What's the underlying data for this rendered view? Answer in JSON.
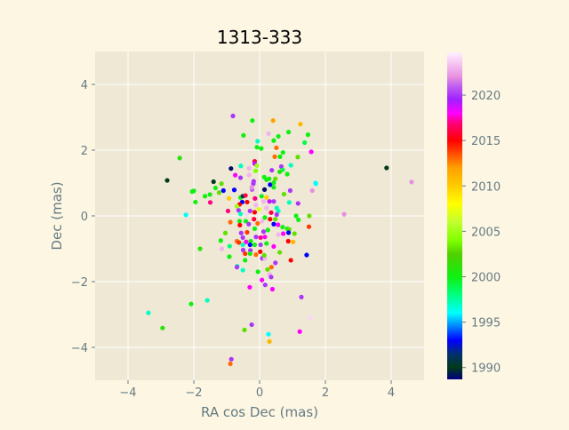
{
  "chart_data": {
    "type": "scatter",
    "title": "1313-333",
    "xlabel": "RA cos Dec (mas)",
    "ylabel": "Dec (mas)",
    "xlim": [
      -5,
      5
    ],
    "ylim": [
      -5,
      5
    ],
    "xticks": [
      -4,
      -2,
      0,
      2,
      4
    ],
    "yticks": [
      -4,
      -2,
      0,
      2,
      4
    ],
    "grid": true,
    "colorbar": {
      "label": "",
      "range": [
        1988.7,
        2024.7
      ],
      "ticks": [
        1990,
        1995,
        2000,
        2005,
        2010,
        2015,
        2020
      ],
      "colormap": "gist_ncar"
    },
    "colors": {
      "page_bg": "#fdf6e3",
      "axes_bg": "#eee8d5",
      "grid": "#ffffff",
      "text": "#657b83"
    },
    "points": [
      [
        -2.81,
        1.08,
        1990
      ],
      [
        -2.43,
        1.76,
        2001
      ],
      [
        3.86,
        1.46,
        1990
      ],
      [
        4.62,
        1.03,
        2022
      ],
      [
        2.57,
        0.05,
        2022
      ],
      [
        -3.38,
        -2.95,
        1997
      ],
      [
        -2.95,
        -3.41,
        2001
      ],
      [
        -2.08,
        -2.68,
        2000
      ],
      [
        -1.59,
        -2.57,
        1997
      ],
      [
        -0.86,
        -4.36,
        2020
      ],
      [
        -0.89,
        -4.5,
        2013
      ],
      [
        0.3,
        -3.82,
        2011
      ],
      [
        0.27,
        -3.6,
        1996
      ],
      [
        -0.46,
        -3.47,
        2003
      ],
      [
        -0.24,
        -3.31,
        2020
      ],
      [
        1.22,
        -3.52,
        2018
      ],
      [
        1.54,
        -3.09,
        2024
      ],
      [
        1.43,
        -1.19,
        1993
      ],
      [
        1.27,
        -2.47,
        2020
      ],
      [
        -0.81,
        3.04,
        2020
      ],
      [
        -0.22,
        2.9,
        2000
      ],
      [
        0.41,
        2.9,
        2012
      ],
      [
        1.24,
        2.79,
        2011
      ],
      [
        1.57,
        1.95,
        2018
      ],
      [
        1.7,
        1.0,
        1996
      ],
      [
        -2.24,
        0.03,
        1996
      ],
      [
        -2.0,
        0.76,
        2000
      ],
      [
        -1.81,
        -1.0,
        2001
      ],
      [
        -1.51,
        0.65,
        2000
      ],
      [
        -0.49,
        2.45,
        2000
      ],
      [
        0.27,
        2.5,
        2023
      ],
      [
        0.88,
        2.55,
        2000
      ],
      [
        1.47,
        2.47,
        2000
      ],
      [
        -0.06,
        2.27,
        1997
      ],
      [
        0.43,
        2.29,
        2000
      ],
      [
        0.57,
        2.42,
        2000
      ],
      [
        -0.08,
        2.09,
        2000
      ],
      [
        0.05,
        2.05,
        2000
      ],
      [
        1.37,
        2.23,
        1999
      ],
      [
        0.51,
        2.07,
        2013
      ],
      [
        0.71,
        1.93,
        2000
      ],
      [
        0.46,
        1.8,
        2013
      ],
      [
        0.62,
        1.8,
        2000
      ],
      [
        1.16,
        1.79,
        2003
      ],
      [
        -0.15,
        1.66,
        2016
      ],
      [
        -0.15,
        1.59,
        2019
      ],
      [
        -0.08,
        1.53,
        2005
      ],
      [
        -0.87,
        1.44,
        1989
      ],
      [
        -0.57,
        1.52,
        1997
      ],
      [
        -0.32,
        1.45,
        2023
      ],
      [
        -0.12,
        1.37,
        2004
      ],
      [
        0.37,
        1.39,
        2020
      ],
      [
        0.66,
        1.5,
        2020
      ],
      [
        0.7,
        1.4,
        1999
      ],
      [
        0.61,
        1.34,
        2001
      ],
      [
        0.95,
        1.54,
        1997
      ],
      [
        0.84,
        1.27,
        2000
      ],
      [
        -0.74,
        1.24,
        2018
      ],
      [
        -0.58,
        1.16,
        2020
      ],
      [
        -0.32,
        1.24,
        2023
      ],
      [
        0.14,
        1.18,
        2000
      ],
      [
        0.21,
        1.1,
        2000
      ],
      [
        0.29,
        1.13,
        2000
      ],
      [
        0.48,
        1.13,
        2003
      ],
      [
        -0.18,
        1.05,
        2020
      ],
      [
        -0.19,
        0.98,
        2020
      ],
      [
        -1.4,
        1.04,
        1990
      ],
      [
        -1.16,
        0.98,
        2003
      ],
      [
        0.32,
        0.95,
        1993
      ],
      [
        0.15,
        0.8,
        1989
      ],
      [
        0.43,
        1.01,
        2000
      ],
      [
        0.43,
        0.87,
        2000
      ],
      [
        -1.34,
        0.85,
        2000
      ],
      [
        -1.23,
        0.71,
        2003
      ],
      [
        -1.1,
        0.77,
        1993
      ],
      [
        -0.77,
        0.79,
        1993
      ],
      [
        -0.23,
        0.8,
        2021
      ],
      [
        -0.24,
        0.87,
        2022
      ],
      [
        -2.05,
        0.74,
        2000
      ],
      [
        -1.66,
        0.6,
        2000
      ],
      [
        -1.95,
        0.42,
        2000
      ],
      [
        -1.5,
        0.41,
        2017
      ],
      [
        -0.93,
        0.53,
        2010
      ],
      [
        0.74,
        0.66,
        2003
      ],
      [
        0.93,
        0.77,
        2020
      ],
      [
        1.71,
        0.98,
        1996
      ],
      [
        1.6,
        0.77,
        2022
      ],
      [
        1.17,
        0.38,
        2020
      ],
      [
        0.9,
        0.41,
        1997
      ],
      [
        -0.58,
        0.56,
        2000
      ],
      [
        -0.53,
        0.42,
        1993
      ],
      [
        -0.51,
        0.6,
        1991
      ],
      [
        -0.43,
        0.62,
        2016
      ],
      [
        -0.61,
        0.35,
        2015
      ],
      [
        -0.38,
        0.42,
        2015
      ],
      [
        -0.14,
        0.53,
        2017
      ],
      [
        -0.11,
        0.33,
        2023
      ],
      [
        0.06,
        0.6,
        2000
      ],
      [
        0.21,
        0.56,
        2010
      ],
      [
        0.12,
        0.44,
        2023
      ],
      [
        0.3,
        0.44,
        2019
      ],
      [
        0.43,
        0.44,
        2020
      ],
      [
        0.52,
        0.24,
        1997
      ],
      [
        0.57,
        0.15,
        1997
      ],
      [
        -0.69,
        0.29,
        2005
      ],
      [
        -0.96,
        0.15,
        2017
      ],
      [
        -0.64,
        0.17,
        2020
      ],
      [
        -0.58,
        0.06,
        1997
      ],
      [
        -0.38,
        0.05,
        2024
      ],
      [
        -0.29,
        0.15,
        2020
      ],
      [
        -0.15,
        0.11,
        2015
      ],
      [
        -0.02,
        0.2,
        2007
      ],
      [
        0.21,
        0.24,
        2023
      ],
      [
        0.35,
        0.1,
        2016
      ],
      [
        0.52,
        0.04,
        2020
      ],
      [
        1.51,
        0.0,
        2003
      ],
      [
        1.11,
        0.0,
        2000
      ],
      [
        1.18,
        -0.12,
        2000
      ],
      [
        1.5,
        -0.33,
        2014
      ],
      [
        -0.89,
        -0.19,
        2013
      ],
      [
        -0.61,
        -0.16,
        2000
      ],
      [
        -0.6,
        -0.28,
        2015
      ],
      [
        -0.42,
        -0.16,
        2000
      ],
      [
        -0.33,
        -0.25,
        2020
      ],
      [
        -0.17,
        -0.1,
        2016
      ],
      [
        -0.06,
        -0.23,
        2013
      ],
      [
        0.07,
        -0.16,
        2023
      ],
      [
        0.16,
        -0.05,
        2000
      ],
      [
        0.32,
        -0.1,
        2015
      ],
      [
        0.48,
        -0.1,
        2003
      ],
      [
        0.43,
        -0.25,
        1993
      ],
      [
        0.56,
        -0.27,
        2018
      ],
      [
        0.7,
        -0.34,
        2000
      ],
      [
        0.84,
        -0.39,
        2000
      ],
      [
        0.9,
        -0.41,
        2003
      ],
      [
        0.88,
        -0.51,
        1993
      ],
      [
        0.72,
        -0.54,
        2018
      ],
      [
        0.57,
        -0.57,
        2023
      ],
      [
        1.06,
        -0.54,
        2003
      ],
      [
        -1.04,
        -0.52,
        2003
      ],
      [
        -0.56,
        -0.52,
        2020
      ],
      [
        -0.38,
        -0.5,
        2014
      ],
      [
        -0.15,
        -0.39,
        2000
      ],
      [
        0.12,
        -0.48,
        2020
      ],
      [
        0.25,
        -0.43,
        2000
      ],
      [
        0.16,
        -0.64,
        2018
      ],
      [
        0.03,
        -0.66,
        2017
      ],
      [
        -0.11,
        -0.64,
        2020
      ],
      [
        -1.18,
        -0.75,
        2000
      ],
      [
        -0.69,
        -0.77,
        2013
      ],
      [
        -0.63,
        -0.81,
        2014
      ],
      [
        -0.51,
        -0.66,
        2020
      ],
      [
        -0.41,
        -0.79,
        2018
      ],
      [
        -0.27,
        -0.77,
        2000
      ],
      [
        -0.15,
        -0.88,
        2000
      ],
      [
        -0.29,
        -0.88,
        1993
      ],
      [
        -0.51,
        -0.88,
        1997
      ],
      [
        0.03,
        -0.88,
        2020
      ],
      [
        0.21,
        -0.84,
        2000
      ],
      [
        0.43,
        -0.93,
        2018
      ],
      [
        0.87,
        -0.77,
        2015
      ],
      [
        1.02,
        -0.79,
        2011
      ],
      [
        -1.15,
        -1.0,
        2023
      ],
      [
        -0.91,
        -0.92,
        1998
      ],
      [
        -0.92,
        -1.24,
        2000
      ],
      [
        -0.5,
        -1.04,
        2020
      ],
      [
        -0.28,
        -1.05,
        2020
      ],
      [
        -0.44,
        -1.15,
        2014
      ],
      [
        -0.29,
        -1.15,
        2000
      ],
      [
        -0.11,
        -1.18,
        2013
      ],
      [
        0.02,
        -1.09,
        2015
      ],
      [
        0.08,
        -1.29,
        2020
      ],
      [
        0.16,
        -1.29,
        2023
      ],
      [
        0.14,
        -1.2,
        2003
      ],
      [
        0.61,
        -1.11,
        2003
      ],
      [
        0.95,
        -1.35,
        2015
      ],
      [
        -0.44,
        -1.35,
        2000
      ],
      [
        -0.68,
        -1.53,
        1997
      ],
      [
        -0.69,
        -1.56,
        2020
      ],
      [
        -0.51,
        -1.65,
        1997
      ],
      [
        -0.05,
        -1.7,
        2000
      ],
      [
        0.24,
        -1.63,
        2003
      ],
      [
        0.36,
        -1.56,
        2013
      ],
      [
        0.48,
        -1.43,
        2020
      ],
      [
        0.3,
        -1.78,
        2023
      ],
      [
        0.35,
        -1.86,
        2020
      ],
      [
        0.07,
        -1.95,
        2018
      ],
      [
        0.17,
        -2.1,
        2020
      ],
      [
        -0.3,
        -2.17,
        2018
      ],
      [
        0.39,
        -2.23,
        2018
      ]
    ]
  }
}
